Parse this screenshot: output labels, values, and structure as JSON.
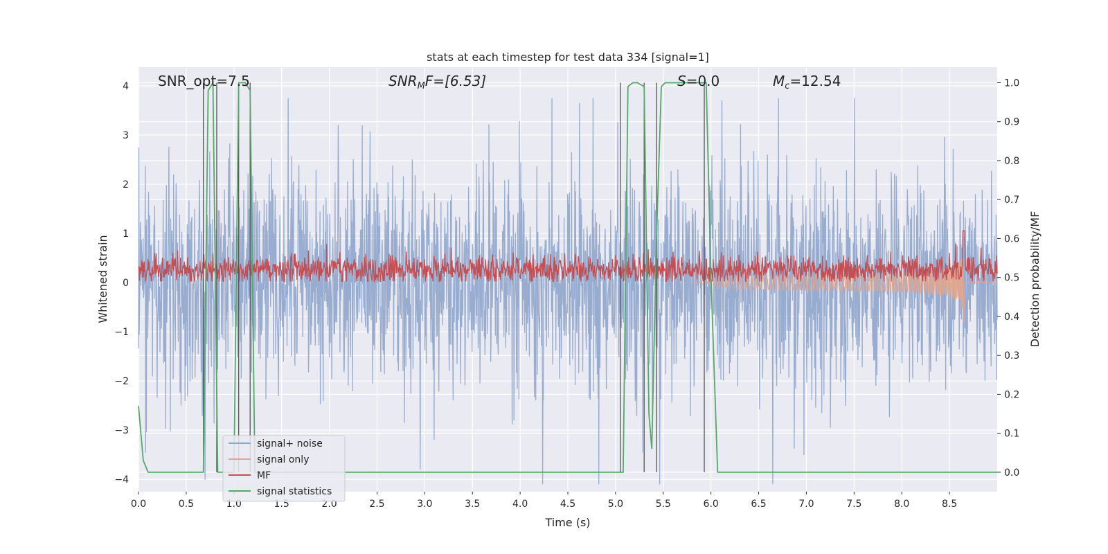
{
  "chart_data": {
    "type": "line",
    "title": "stats at each timestep for test data 334 [signal=1]",
    "xlabel": "Time (s)",
    "ylabel": "Whitened strain",
    "ylabel_right": "Detection probability/MF",
    "xlim": [
      0.0,
      9.0
    ],
    "ylim": [
      -4.25,
      4.38
    ],
    "ylim_right": [
      -0.05,
      1.04
    ],
    "x_ticks": [
      0.0,
      0.5,
      1.0,
      1.5,
      2.0,
      2.5,
      3.0,
      3.5,
      4.0,
      4.5,
      5.0,
      5.5,
      6.0,
      6.5,
      7.0,
      7.5,
      8.0,
      8.5
    ],
    "x_tick_labels": [
      "0.0",
      "0.5",
      "1.0",
      "1.5",
      "2.0",
      "2.5",
      "3.0",
      "3.5",
      "4.0",
      "4.5",
      "5.0",
      "5.5",
      "6.0",
      "6.5",
      "7.0",
      "7.5",
      "8.0",
      "8.5"
    ],
    "y_ticks": [
      -4,
      -3,
      -2,
      -1,
      0,
      1,
      2,
      3,
      4
    ],
    "y_tick_labels": [
      "−4",
      "−3",
      "−2",
      "−1",
      "0",
      "1",
      "2",
      "3",
      "4"
    ],
    "y_right_ticks": [
      0.0,
      0.1,
      0.2,
      0.3,
      0.4,
      0.5,
      0.6,
      0.7,
      0.8,
      0.9,
      1.0
    ],
    "y_right_tick_labels": [
      "0.0",
      "0.1",
      "0.2",
      "0.3",
      "0.4",
      "0.5",
      "0.6",
      "0.7",
      "0.8",
      "0.9",
      "1.0"
    ],
    "grid": true,
    "legend_position": "lower-left",
    "annotations": {
      "snr_opt": "SNR_opt=7.5",
      "snr_mf_base": "SNR",
      "snr_mf_sub": "M",
      "snr_mf_rest": "F=[6.53]",
      "s_value": "=0.0",
      "s_symbol": "S",
      "mc_symbol": "M",
      "mc_sub": "c",
      "mc_value": "=12.54"
    },
    "series": [
      {
        "name": "signal+ noise",
        "color": "#8fa5cc",
        "axis": "left",
        "description": "whitened noisy strain, roughly within ±3.5"
      },
      {
        "name": "signal only",
        "color": "#e2a58c",
        "axis": "left",
        "chirp_peak_time": 8.65,
        "chirp_peak_amplitude": 1.0
      },
      {
        "name": "MF",
        "color": "#c44e52",
        "axis": "right",
        "baseline": 0.52,
        "peak_time": 8.65,
        "peak_value": 0.62
      },
      {
        "name": "signal statistics",
        "color": "#55a868",
        "axis": "right",
        "x": [
          0.0,
          0.05,
          0.1,
          0.15,
          0.68,
          0.73,
          0.78,
          0.83,
          0.88,
          1.0,
          1.05,
          1.12,
          1.17,
          1.22,
          1.3,
          5.05,
          5.08,
          5.13,
          5.18,
          5.23,
          5.3,
          5.35,
          5.38,
          5.43,
          5.48,
          5.52,
          5.57,
          5.65,
          5.9,
          5.95,
          6.0,
          6.07,
          6.15,
          9.0
        ],
        "y": [
          0.17,
          0.03,
          0.0,
          0.0,
          0.0,
          0.98,
          1.0,
          0.0,
          0.0,
          0.0,
          1.0,
          1.0,
          0.98,
          0.0,
          0.0,
          0.0,
          0.0,
          0.99,
          1.0,
          1.0,
          0.99,
          0.15,
          0.06,
          0.61,
          0.99,
          1.0,
          1.0,
          1.0,
          1.0,
          1.0,
          0.5,
          0.0,
          0.0,
          0.0
        ]
      }
    ],
    "vertical_lines": [
      0.68,
      0.82,
      1.05,
      1.17,
      5.05,
      5.3,
      5.43,
      5.93
    ]
  }
}
